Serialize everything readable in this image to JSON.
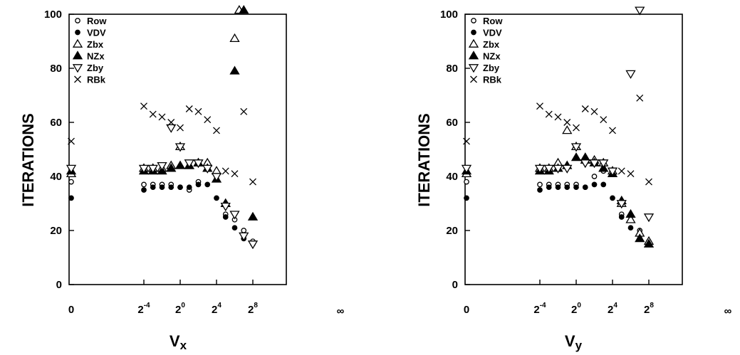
{
  "chart_data": [
    {
      "type": "scatter",
      "xlabel": "V",
      "xlabel_sub": "x",
      "ylabel": "ITERATIONS",
      "ylim": [
        0,
        100
      ],
      "yticks": [
        0,
        20,
        40,
        60,
        80,
        100
      ],
      "x_scale": "log2, with a break at 0 and at infinity",
      "xticks": [
        {
          "label": "0",
          "value": "0"
        },
        {
          "label_base": "2",
          "label_exp": "-4",
          "value": -4
        },
        {
          "label_base": "2",
          "label_exp": "0",
          "value": 0
        },
        {
          "label_base": "2",
          "label_exp": "4",
          "value": 4
        },
        {
          "label_base": "2",
          "label_exp": "8",
          "value": 8
        },
        {
          "label": "∞",
          "value": "inf"
        }
      ],
      "legend_position": "top-left",
      "series": [
        {
          "name": "Row",
          "marker": "open-circle",
          "points": [
            [
              "0",
              38
            ],
            [
              -4,
              37
            ],
            [
              -3,
              37
            ],
            [
              -2,
              37
            ],
            [
              -1,
              37
            ],
            [
              0,
              36
            ],
            [
              1,
              35
            ],
            [
              2,
              38
            ],
            [
              3,
              45
            ],
            [
              4,
              41
            ],
            [
              5,
              26
            ],
            [
              6,
              24
            ],
            [
              7,
              20
            ],
            [
              8,
              16
            ]
          ]
        },
        {
          "name": "VDV",
          "marker": "filled-circle",
          "points": [
            [
              "0",
              32
            ],
            [
              -4,
              35
            ],
            [
              -3,
              36
            ],
            [
              -2,
              36
            ],
            [
              -1,
              36
            ],
            [
              0,
              36
            ],
            [
              1,
              36
            ],
            [
              2,
              37
            ],
            [
              3,
              37
            ],
            [
              4,
              32
            ],
            [
              5,
              25
            ],
            [
              6,
              21
            ],
            [
              7,
              17
            ],
            [
              8,
              15
            ]
          ]
        },
        {
          "name": "Zbx",
          "marker": "open-triangle-up",
          "points": [
            [
              "0",
              41
            ],
            [
              -4,
              43
            ],
            [
              -3,
              43
            ],
            [
              -2,
              43
            ],
            [
              -1,
              44
            ],
            [
              0,
              51
            ],
            [
              1,
              44
            ],
            [
              2,
              45
            ],
            [
              3,
              45
            ],
            [
              4,
              42
            ],
            [
              5,
              30
            ],
            [
              6,
              91
            ],
            [
              6.5,
              102
            ]
          ]
        },
        {
          "name": "NZx",
          "marker": "filled-triangle-up",
          "points": [
            [
              "0",
              42
            ],
            [
              -4,
              42
            ],
            [
              -3,
              42
            ],
            [
              -2,
              42
            ],
            [
              -1,
              43
            ],
            [
              0,
              44
            ],
            [
              1,
              44
            ],
            [
              2,
              45
            ],
            [
              3,
              43
            ],
            [
              4,
              39
            ],
            [
              5,
              30
            ],
            [
              6,
              79
            ],
            [
              7,
              102
            ],
            [
              8,
              25
            ]
          ]
        },
        {
          "name": "Zby",
          "marker": "open-triangle-down",
          "points": [
            [
              "0",
              43
            ],
            [
              -4,
              43
            ],
            [
              -3,
              43
            ],
            [
              -2,
              44
            ],
            [
              -1,
              58
            ],
            [
              0,
              51
            ],
            [
              1,
              45
            ],
            [
              2,
              45
            ],
            [
              3,
              43
            ],
            [
              4,
              40
            ],
            [
              5,
              29
            ],
            [
              6,
              26
            ],
            [
              7,
              18
            ],
            [
              8,
              15
            ]
          ]
        },
        {
          "name": "RBk",
          "marker": "cross",
          "points": [
            [
              "0",
              53
            ],
            [
              -4,
              66
            ],
            [
              -3,
              63
            ],
            [
              -2,
              62
            ],
            [
              -1,
              60
            ],
            [
              0,
              58
            ],
            [
              1,
              65
            ],
            [
              2,
              64
            ],
            [
              3,
              61
            ],
            [
              4,
              57
            ],
            [
              5,
              42
            ],
            [
              6,
              41
            ],
            [
              7,
              64
            ],
            [
              8,
              38
            ]
          ]
        }
      ]
    },
    {
      "type": "scatter",
      "xlabel": "V",
      "xlabel_sub": "y",
      "ylabel": "ITERATIONS",
      "ylim": [
        0,
        100
      ],
      "yticks": [
        0,
        20,
        40,
        60,
        80,
        100
      ],
      "x_scale": "log2, with a break at 0 and at infinity",
      "xticks": [
        {
          "label": "0",
          "value": "0"
        },
        {
          "label_base": "2",
          "label_exp": "-4",
          "value": -4
        },
        {
          "label_base": "2",
          "label_exp": "0",
          "value": 0
        },
        {
          "label_base": "2",
          "label_exp": "4",
          "value": 4
        },
        {
          "label_base": "2",
          "label_exp": "8",
          "value": 8
        },
        {
          "label": "∞",
          "value": "inf"
        }
      ],
      "legend_position": "top-left",
      "series": [
        {
          "name": "Row",
          "marker": "open-circle",
          "points": [
            [
              "0",
              38
            ],
            [
              -4,
              37
            ],
            [
              -3,
              37
            ],
            [
              -2,
              37
            ],
            [
              -1,
              37
            ],
            [
              0,
              37
            ],
            [
              1,
              36
            ],
            [
              2,
              40
            ],
            [
              3,
              42
            ],
            [
              4,
              41
            ],
            [
              5,
              26
            ],
            [
              6,
              24
            ],
            [
              7,
              20
            ],
            [
              8,
              16
            ]
          ]
        },
        {
          "name": "VDV",
          "marker": "filled-circle",
          "points": [
            [
              "0",
              32
            ],
            [
              -4,
              35
            ],
            [
              -3,
              36
            ],
            [
              -2,
              36
            ],
            [
              -1,
              36
            ],
            [
              0,
              36
            ],
            [
              1,
              36
            ],
            [
              2,
              37
            ],
            [
              3,
              37
            ],
            [
              4,
              32
            ],
            [
              5,
              25
            ],
            [
              6,
              21
            ],
            [
              7,
              17
            ],
            [
              8,
              15
            ]
          ]
        },
        {
          "name": "Zbx",
          "marker": "open-triangle-up",
          "points": [
            [
              "0",
              41
            ],
            [
              -4,
              43
            ],
            [
              -3,
              43
            ],
            [
              -2,
              45
            ],
            [
              -1,
              57
            ],
            [
              0,
              51
            ],
            [
              1,
              46
            ],
            [
              2,
              46
            ],
            [
              3,
              45
            ],
            [
              4,
              42
            ],
            [
              5,
              30
            ],
            [
              6,
              24
            ],
            [
              7,
              19
            ],
            [
              8,
              16
            ]
          ]
        },
        {
          "name": "NZx",
          "marker": "filled-triangle-up",
          "points": [
            [
              "0",
              42
            ],
            [
              -4,
              42
            ],
            [
              -3,
              42
            ],
            [
              -2,
              43
            ],
            [
              -1,
              44
            ],
            [
              0,
              47
            ],
            [
              1,
              47
            ],
            [
              2,
              45
            ],
            [
              3,
              43
            ],
            [
              4,
              41
            ],
            [
              5,
              31
            ],
            [
              6,
              26
            ],
            [
              7,
              17
            ],
            [
              8,
              15
            ]
          ]
        },
        {
          "name": "Zby",
          "marker": "open-triangle-down",
          "points": [
            [
              "0",
              43
            ],
            [
              -4,
              43
            ],
            [
              -3,
              43
            ],
            [
              -2,
              43
            ],
            [
              -1,
              43
            ],
            [
              0,
              51
            ],
            [
              1,
              45
            ],
            [
              2,
              45
            ],
            [
              3,
              45
            ],
            [
              4,
              42
            ],
            [
              5,
              30
            ],
            [
              6,
              78
            ],
            [
              7,
              102
            ],
            [
              8,
              25
            ]
          ]
        },
        {
          "name": "RBk",
          "marker": "cross",
          "points": [
            [
              "0",
              53
            ],
            [
              -4,
              66
            ],
            [
              -3,
              63
            ],
            [
              -2,
              62
            ],
            [
              -1,
              60
            ],
            [
              0,
              58
            ],
            [
              1,
              65
            ],
            [
              2,
              64
            ],
            [
              3,
              61
            ],
            [
              4,
              57
            ],
            [
              5,
              42
            ],
            [
              6,
              41
            ],
            [
              7,
              69
            ],
            [
              8,
              38
            ]
          ]
        }
      ]
    }
  ]
}
